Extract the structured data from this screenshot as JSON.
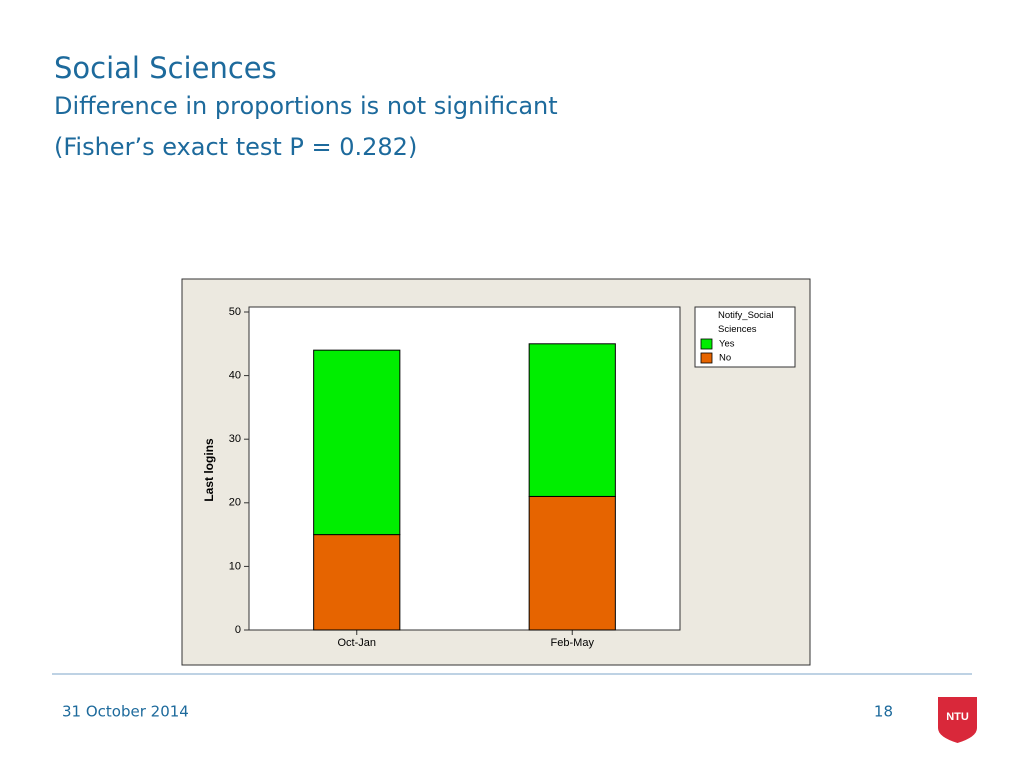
{
  "slide": {
    "title": "Social Sciences",
    "subtitle": "Difference in proportions is not significant",
    "note": "(Fisher’s exact test P = 0.282)",
    "date": "31 October 2014",
    "page": "18",
    "logo": "NTU"
  },
  "chart_data": {
    "type": "stacked_bar",
    "ylabel": "Last logins",
    "legend_title": "Notify_Social Sciences",
    "categories": [
      "Oct-Jan",
      "Feb-May"
    ],
    "series": [
      {
        "name": "Yes",
        "color": "#00ee00",
        "values": [
          29,
          24
        ]
      },
      {
        "name": "No",
        "color": "#e66400",
        "values": [
          15,
          21
        ]
      }
    ],
    "ylim": [
      0,
      50
    ],
    "yticks": [
      0,
      10,
      20,
      30,
      40,
      50
    ],
    "legend": "top-right"
  }
}
